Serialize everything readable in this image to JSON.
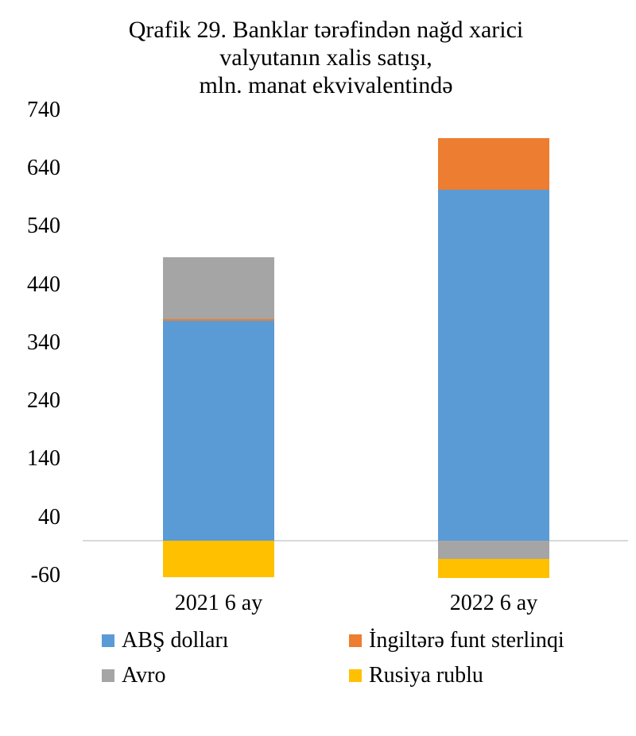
{
  "page": {
    "background": "#ffffff",
    "text_color": "#000000"
  },
  "chart_data": {
    "type": "bar",
    "stacked": true,
    "title": "Qrafik 29. Banklar tərəfindən nağd xarici\nvalyutanın xalis satışı,\nmln. manat ekvivalentində",
    "categories": [
      "2021 6 ay",
      "2022 6 ay"
    ],
    "series": [
      {
        "name": "ABŞ dolları",
        "color": "#5B9BD5",
        "values": [
          378,
          603
        ]
      },
      {
        "name": "İngiltərə funt sterlinqi",
        "color": "#ED7D31",
        "values": [
          3,
          89
        ]
      },
      {
        "name": "Avro",
        "color": "#A5A5A5",
        "values": [
          106,
          -31
        ]
      },
      {
        "name": "Rusiya rublu",
        "color": "#FFC000",
        "values": [
          -63,
          -33
        ]
      }
    ],
    "totals": {
      "2021 6 ay": {
        "positive": 487,
        "negative": -63
      },
      "2022 6 ay": {
        "positive": 692,
        "negative": -64
      }
    },
    "yticks": [
      740,
      640,
      540,
      440,
      340,
      240,
      140,
      40,
      -60
    ],
    "ylim": [
      -60,
      740
    ],
    "xlabel": "",
    "ylabel": "",
    "grid": "zero-baseline-only",
    "gridline_color": "#D9D9D9",
    "legend_position": "bottom",
    "legend_columns": 2
  }
}
